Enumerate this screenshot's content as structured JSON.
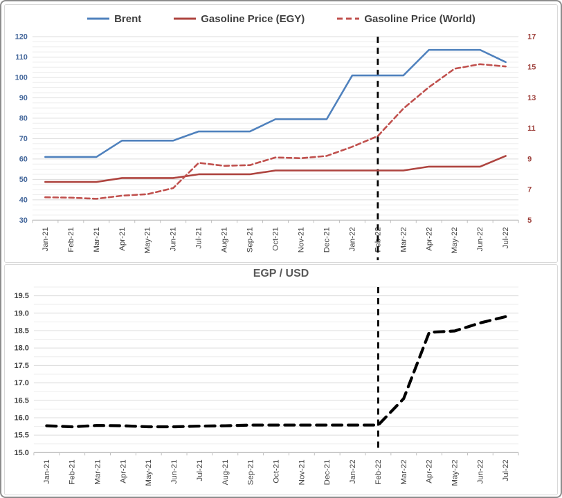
{
  "frame": {
    "outer_border_color": "#8c8c8c",
    "panel_border_color": "#d9d9d9",
    "background": "#ffffff"
  },
  "colors": {
    "brent_blue": "#4F81BD",
    "egy_red": "#AE443F",
    "world_red": "#C0504D",
    "event_line_black": "#000000",
    "left_axis_label": "#44679B",
    "right_axis_label": "#9E413C",
    "bottom_axis_label": "#404040",
    "grid_minor": "#EDEDED",
    "grid_major": "#DCDCDC",
    "axis_line": "#BFBFBF",
    "legend_text": "#404040",
    "title_text": "#595959"
  },
  "chart_data": [
    {
      "type": "line",
      "title": "",
      "legend_position": "top",
      "categories": [
        "Jan-21",
        "Feb-21",
        "Mar-21",
        "Apr-21",
        "May-21",
        "Jun-21",
        "Jul-21",
        "Aug-21",
        "Sep-21",
        "Oct-21",
        "Nov-21",
        "Dec-21",
        "Jan-22",
        "Feb-22",
        "Mar-22",
        "Apr-22",
        "May-22",
        "Jun-22",
        "Jul-22"
      ],
      "left_axis": {
        "min": 30,
        "max": 120,
        "ticks": [
          "30",
          "40",
          "50",
          "60",
          "70",
          "80",
          "90",
          "100",
          "110",
          "120"
        ],
        "color": "#44679B"
      },
      "right_axis": {
        "min": 5,
        "max": 17,
        "ticks": [
          "5",
          "7",
          "9",
          "11",
          "13",
          "15",
          "17"
        ],
        "color": "#9E413C"
      },
      "grid_step": 2.5,
      "grid_on": true,
      "vline": {
        "category": "Feb-22",
        "color": "#000000",
        "style": "dashed"
      },
      "series": [
        {
          "name": "Brent",
          "axis": "left",
          "color": "#4F81BD",
          "style": "solid",
          "values": [
            61,
            61,
            61,
            69,
            69,
            69,
            73.5,
            73.5,
            73.5,
            79.5,
            79.5,
            79.5,
            101,
            101,
            101,
            113.5,
            113.5,
            113.5,
            107.5
          ]
        },
        {
          "name": "Gasoline Price (EGY)",
          "axis": "right",
          "color": "#AE443F",
          "style": "solid",
          "values": [
            7.5,
            7.5,
            7.5,
            7.75,
            7.75,
            7.75,
            8.0,
            8.0,
            8.0,
            8.25,
            8.25,
            8.25,
            8.25,
            8.25,
            8.25,
            8.5,
            8.5,
            8.5,
            9.2
          ]
        },
        {
          "name": "Gasoline Price (World)",
          "axis": "right",
          "color": "#C0504D",
          "style": "dashed",
          "values": [
            6.5,
            6.47,
            6.4,
            6.6,
            6.7,
            7.1,
            8.75,
            8.55,
            8.6,
            9.1,
            9.05,
            9.2,
            9.8,
            10.5,
            12.3,
            13.7,
            14.9,
            15.2,
            15.05
          ]
        }
      ]
    },
    {
      "type": "line",
      "title": "EGP / USD",
      "legend_position": "none",
      "categories": [
        "Jan-21",
        "Feb-21",
        "Mar-21",
        "Apr-21",
        "May-21",
        "Jun-21",
        "Jul-21",
        "Aug-21",
        "Sep-21",
        "Oct-21",
        "Nov-21",
        "Dec-21",
        "Jan-22",
        "Feb-22",
        "Mar-22",
        "Apr-22",
        "May-22",
        "Jun-22",
        "Jul-22"
      ],
      "left_axis": {
        "min": 15.0,
        "max": 19.75,
        "ticks": [
          "15.0",
          "15.5",
          "16.0",
          "16.5",
          "17.0",
          "17.5",
          "18.0",
          "18.5",
          "19.0",
          "19.5"
        ],
        "color": "#404040"
      },
      "grid_step": 0.25,
      "grid_on": true,
      "vline": {
        "category": "Feb-22",
        "color": "#000000",
        "style": "dashed"
      },
      "series": [
        {
          "name": "EGP / USD",
          "axis": "left",
          "color": "#000000",
          "style": "dashed-heavy",
          "values": [
            15.77,
            15.74,
            15.78,
            15.77,
            15.74,
            15.74,
            15.76,
            15.77,
            15.79,
            15.79,
            15.79,
            15.79,
            15.79,
            15.79,
            16.55,
            18.45,
            18.49,
            18.72,
            18.9
          ]
        }
      ]
    }
  ]
}
